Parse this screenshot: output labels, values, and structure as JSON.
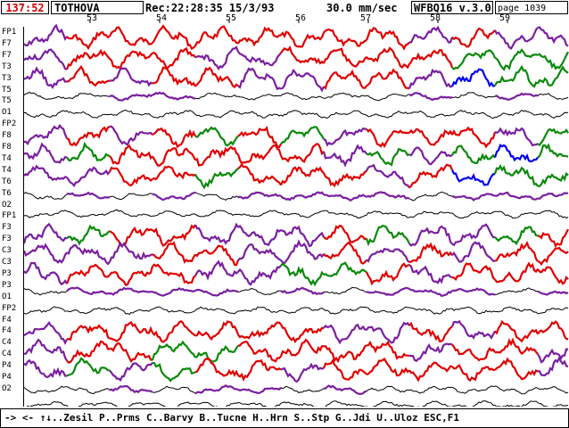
{
  "header": {
    "time": "137:52",
    "patient": "TOTHOVA",
    "recording": "Rec:22:28:35 15/3/93",
    "speed": "30.0 mm/sec",
    "version": "WFBQ16 v.3.0",
    "page": "page 1039"
  },
  "seconds": [
    "53",
    "54",
    "55",
    "56",
    "57",
    "58",
    "59"
  ],
  "channels": [
    "FP1",
    "F7",
    "T3",
    "T5",
    "O1",
    "FP2",
    "F8",
    "T4",
    "T6",
    "O2",
    "FP1",
    "F3",
    "C3",
    "P3",
    "O1",
    "FP2",
    "F4",
    "C4",
    "P4",
    "O2"
  ],
  "channel_labels": [
    "FP1",
    "F7",
    "F7",
    "T3",
    "T3",
    "T5",
    "T5",
    "O1",
    "FP2",
    "F8",
    "F8",
    "T4",
    "T4",
    "T6",
    "T6",
    "O2",
    "FP1",
    "F3",
    "F3",
    "C3",
    "C3",
    "P3",
    "P3",
    "O1",
    "FP2",
    "F4",
    "F4",
    "C4",
    "C4",
    "P4",
    "P4",
    "O2"
  ],
  "colors": {
    "trace": "#000000",
    "amplitude_high": "#e00000",
    "amplitude_mid": "#7a1fa0",
    "amplitude_low": "#0a8a0a",
    "artifact": "#0000ee",
    "time_text": "#d40000"
  },
  "footer": {
    "commands": "-> <- ↑↓..Zesil P..Prms C..Barvy B..Tucne H..Hrn S..Stp G..Jdi U..Uloz ESC,F1"
  }
}
